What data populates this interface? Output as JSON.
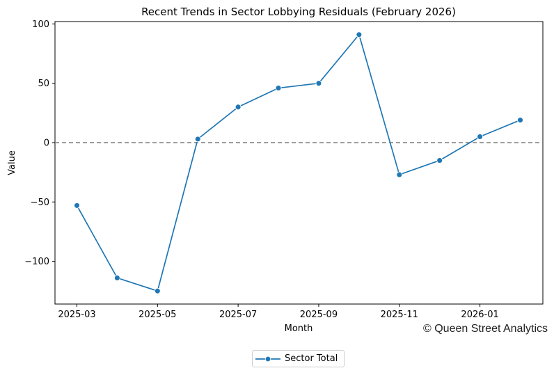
{
  "chart_data": {
    "type": "line",
    "title": "Recent Trends in Sector Lobbying Residuals (February 2026)",
    "xlabel": "Month",
    "ylabel": "Value",
    "x": [
      "2025-03",
      "2025-04",
      "2025-05",
      "2025-06",
      "2025-07",
      "2025-08",
      "2025-09",
      "2025-10",
      "2025-11",
      "2025-12",
      "2026-01",
      "2026-02"
    ],
    "x_ticks": [
      "2025-03",
      "2025-05",
      "2025-07",
      "2025-09",
      "2025-11",
      "2026-01"
    ],
    "y_ticks": [
      100,
      50,
      0,
      -50,
      -100
    ],
    "ylim": [
      -136,
      102
    ],
    "reference_line": 0,
    "grid": false,
    "legend_position": "below",
    "series": [
      {
        "name": "Sector Total",
        "color": "#1f77b4",
        "marker": "circle",
        "values": [
          -53,
          -114,
          -125,
          3,
          30,
          46,
          50,
          91,
          -27,
          -15,
          5,
          19
        ]
      }
    ]
  },
  "credit": "© Queen Street Analytics",
  "colors": {
    "line": "#1f77b4",
    "reference": "#7f7f7f"
  }
}
